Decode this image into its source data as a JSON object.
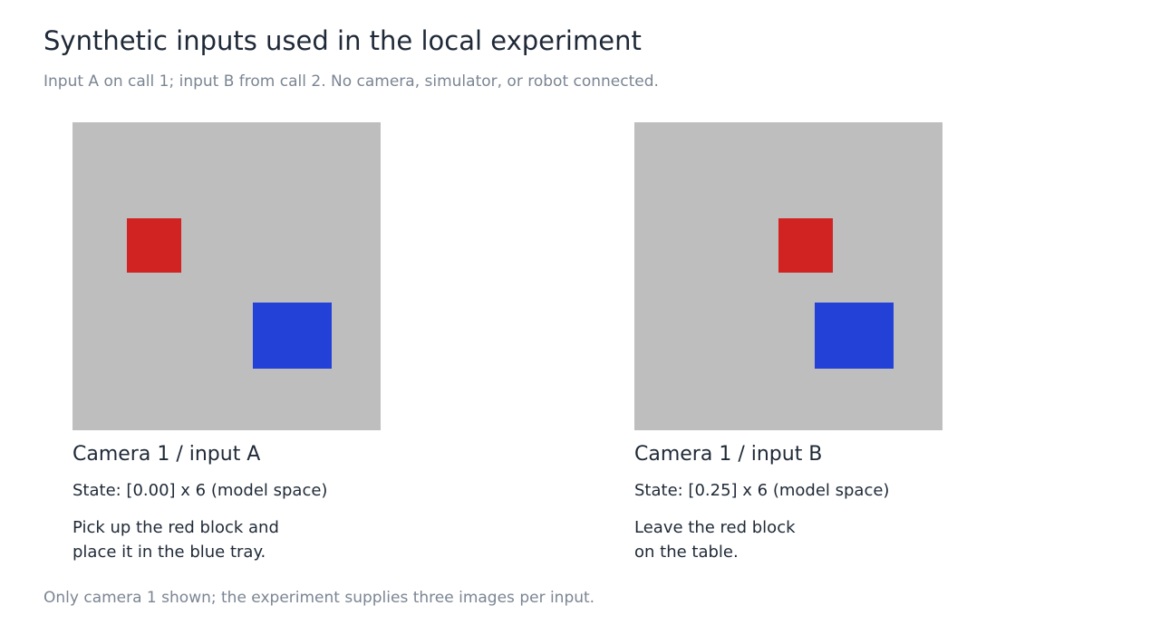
{
  "header": {
    "title": "Synthetic inputs used in the local experiment",
    "subtitle": "Input A on call 1; input B from call 2. No camera, simulator, or robot connected."
  },
  "colors": {
    "background": "#bebebe",
    "red_block": "#d22323",
    "blue_tray": "#2341d7"
  },
  "panels": [
    {
      "camera_label": "Camera 1 / input A",
      "state_label": "State: [0.00] x 6 (model space)",
      "instruction_lines": [
        "Pick up the red block and",
        "place it in the blue tray."
      ]
    },
    {
      "camera_label": "Camera 1 / input B",
      "state_label": "State: [0.25] x 6 (model space)",
      "instruction_lines": [
        "Leave the red block",
        "on the table."
      ]
    }
  ],
  "footer": {
    "note": "Only camera 1 shown; the experiment supplies three images per input."
  }
}
